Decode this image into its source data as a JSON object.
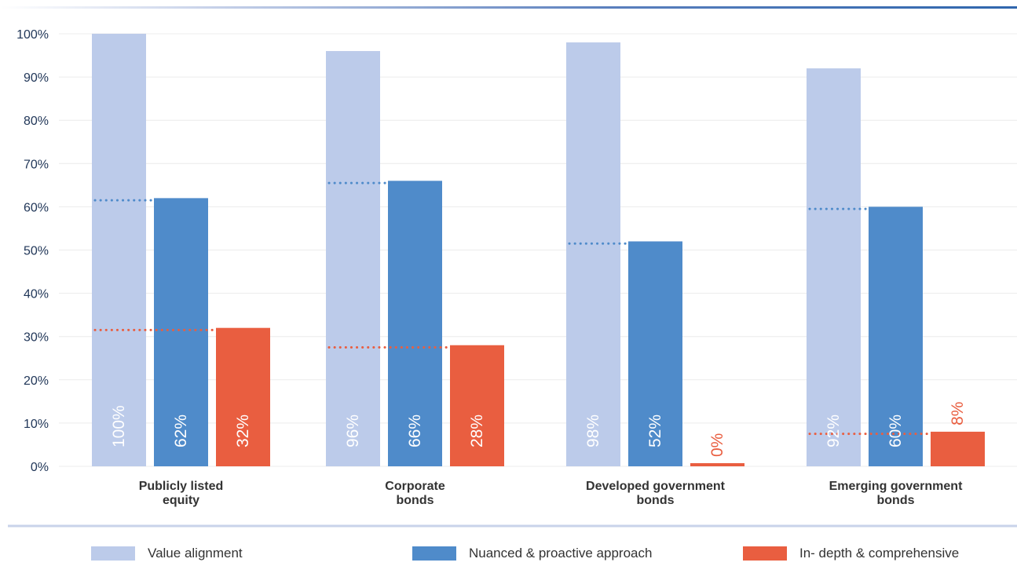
{
  "chart_data": {
    "type": "bar",
    "categories": [
      [
        "Publicly listed",
        "equity"
      ],
      [
        "Corporate",
        "bonds"
      ],
      [
        "Developed government",
        "bonds"
      ],
      [
        "Emerging government",
        "bonds"
      ]
    ],
    "series": [
      {
        "name": "Value alignment",
        "values": [
          100,
          96,
          98,
          92
        ],
        "labels": [
          "100%",
          "96%",
          "98%",
          "92%"
        ],
        "color": "#bccbea"
      },
      {
        "name": "Nuanced & proactive approach",
        "values": [
          62,
          66,
          52,
          60
        ],
        "labels": [
          "62%",
          "66%",
          "52%",
          "60%"
        ],
        "color": "#4f8bca"
      },
      {
        "name": "In- depth & comprehensive",
        "values": [
          32,
          28,
          0,
          8
        ],
        "labels": [
          "32%",
          "28%",
          "0%",
          "8%"
        ],
        "color": "#e95e40"
      }
    ],
    "reference_lines": [
      {
        "series": "Nuanced & proactive approach",
        "values": [
          61.5,
          65.5,
          51.5,
          59.5
        ],
        "color": "#4f8bca",
        "style": "dotted"
      },
      {
        "series": "In- depth & comprehensive",
        "values": [
          31.5,
          27.5,
          null,
          7.5
        ],
        "color": "#e95e40",
        "style": "dotted"
      }
    ],
    "yticks": [
      "0%",
      "10%",
      "20%",
      "30%",
      "40%",
      "50%",
      "60%",
      "70%",
      "80%",
      "90%",
      "100%"
    ],
    "ylim": [
      0,
      100
    ],
    "grid": true,
    "legend_position": "bottom",
    "title": "",
    "xlabel": "",
    "ylabel": ""
  },
  "colors": {
    "grid": "#ececec",
    "separator": "#c9d3ea",
    "label_on_bar": "#ffffff"
  }
}
